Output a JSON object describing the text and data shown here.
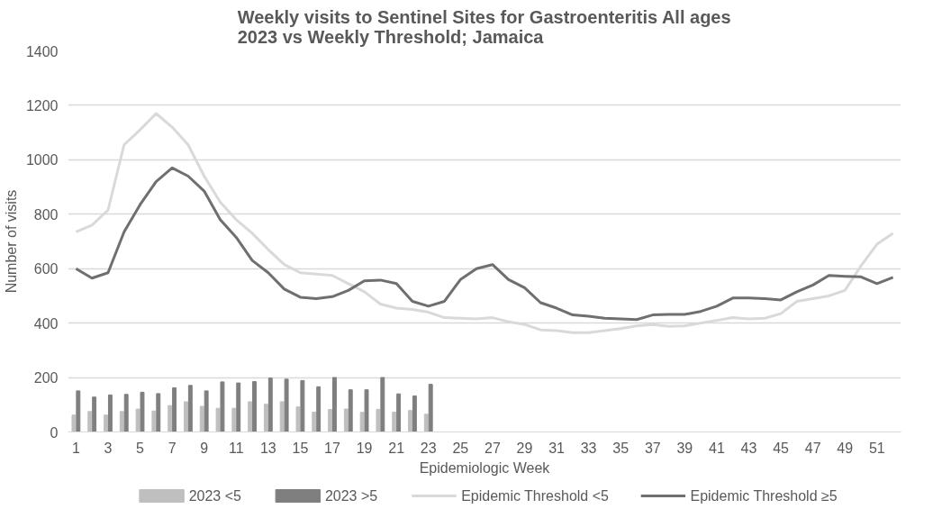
{
  "chart_data": {
    "type": "bar",
    "title": "Weekly visits to Sentinel Sites for Gastroenteritis All ages 2023 vs Weekly Threshold; Jamaica",
    "xlabel": "Epidemiologic Week",
    "ylabel": "Number of visits",
    "x": [
      1,
      2,
      3,
      4,
      5,
      6,
      7,
      8,
      9,
      10,
      11,
      12,
      13,
      14,
      15,
      16,
      17,
      18,
      19,
      20,
      21,
      22,
      23,
      24,
      25,
      26,
      27,
      28,
      29,
      30,
      31,
      32,
      33,
      34,
      35,
      36,
      37,
      38,
      39,
      40,
      41,
      42,
      43,
      44,
      45,
      46,
      47,
      48,
      49,
      50,
      51,
      52
    ],
    "xlim": [
      0.5,
      52.5
    ],
    "xticks": [
      1,
      3,
      5,
      7,
      9,
      11,
      13,
      15,
      17,
      19,
      21,
      23,
      25,
      27,
      29,
      31,
      33,
      35,
      37,
      39,
      41,
      43,
      45,
      47,
      49,
      51
    ],
    "ylim": [
      0,
      1400
    ],
    "yticks": [
      0,
      200,
      400,
      600,
      800,
      1000,
      1200,
      1400
    ],
    "grid": "y",
    "legend": "bottom",
    "series": [
      {
        "name": "2023 <5",
        "color": "#bfbfbf",
        "values": [
          62,
          75,
          62,
          75,
          84,
          77,
          97,
          111,
          94,
          87,
          87,
          111,
          102,
          111,
          92,
          73,
          83,
          84,
          72,
          83,
          73,
          79,
          65,
          null,
          null,
          null,
          null,
          null,
          null,
          null,
          null,
          null,
          null,
          null,
          null,
          null,
          null,
          null,
          null,
          null,
          null,
          null,
          null,
          null,
          null,
          null,
          null,
          null,
          null,
          null,
          null,
          null
        ]
      },
      {
        "name": "2023 >5",
        "color": "#7f7f7f",
        "values": [
          151,
          128,
          136,
          138,
          146,
          141,
          162,
          171,
          151,
          184,
          180,
          185,
          198,
          194,
          189,
          166,
          200,
          155,
          155,
          200,
          140,
          132,
          175,
          null,
          null,
          null,
          null,
          null,
          null,
          null,
          null,
          null,
          null,
          null,
          null,
          null,
          null,
          null,
          null,
          null,
          null,
          null,
          null,
          null,
          null,
          null,
          null,
          null,
          null,
          null,
          null,
          null
        ]
      },
      {
        "name": "Epidemic Threshold <5",
        "type": "line",
        "color": "#d9d9d9",
        "values": [
          735,
          760,
          815,
          1055,
          1110,
          1170,
          1120,
          1055,
          940,
          845,
          780,
          730,
          670,
          615,
          585,
          580,
          575,
          545,
          515,
          470,
          455,
          450,
          440,
          420,
          418,
          415,
          420,
          405,
          395,
          375,
          372,
          365,
          365,
          372,
          380,
          390,
          395,
          388,
          390,
          400,
          410,
          420,
          415,
          418,
          435,
          480,
          490,
          500,
          520,
          610,
          690,
          730
        ]
      },
      {
        "name": "Epidemic Threshold ≥5",
        "type": "line",
        "color": "#6f6f6f",
        "values": [
          600,
          565,
          585,
          735,
          835,
          920,
          970,
          940,
          885,
          780,
          715,
          630,
          585,
          525,
          495,
          490,
          497,
          520,
          555,
          558,
          545,
          480,
          462,
          480,
          560,
          600,
          615,
          560,
          530,
          475,
          455,
          430,
          425,
          418,
          415,
          413,
          430,
          432,
          432,
          443,
          462,
          492,
          492,
          490,
          485,
          515,
          540,
          575,
          572,
          570,
          545,
          568
        ]
      }
    ]
  }
}
